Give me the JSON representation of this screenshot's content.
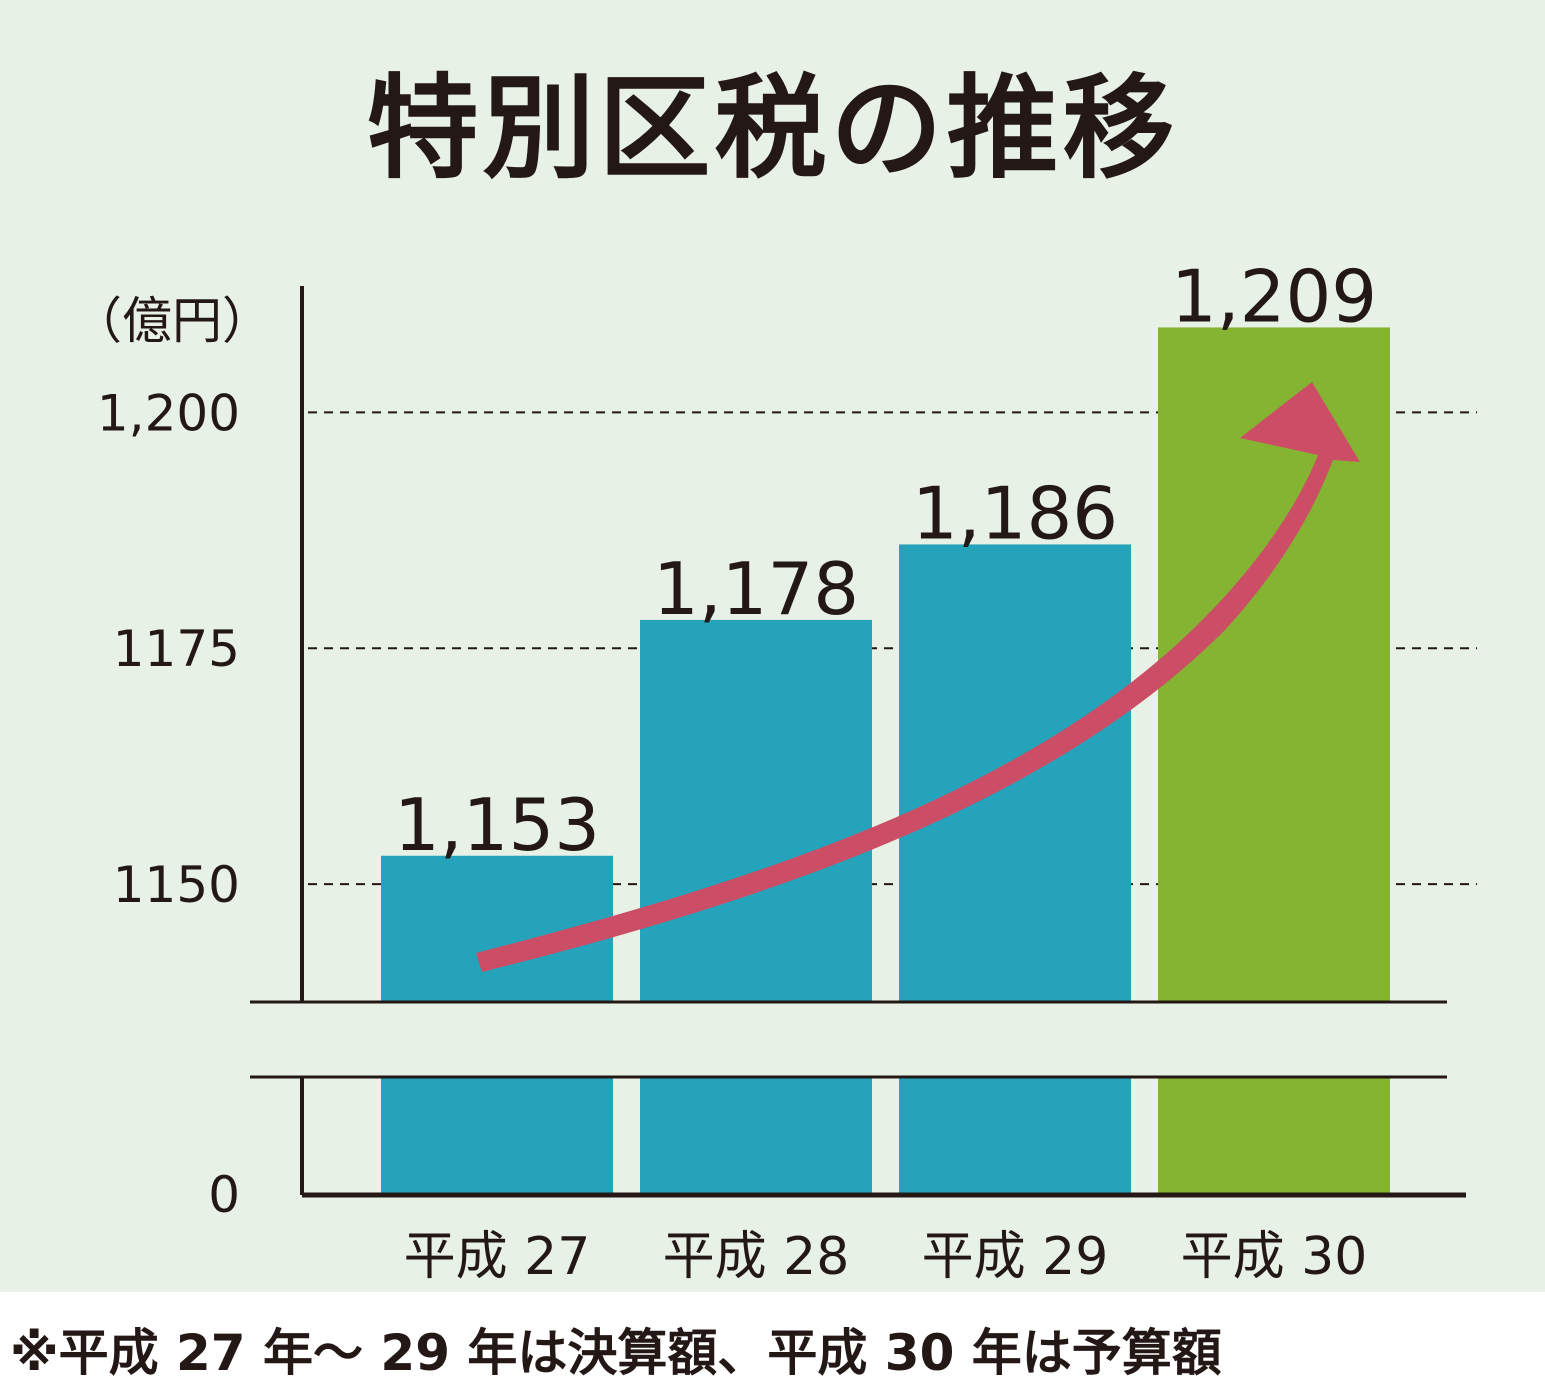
{
  "chart_data": {
    "type": "bar",
    "title": "特別区税の推移",
    "unit_label": "（億円）",
    "categories": [
      "平成 27",
      "平成 28",
      "平成 29",
      "平成 30"
    ],
    "values": [
      1153,
      1178,
      1186,
      1209
    ],
    "data_labels": [
      "1,153",
      "1,178",
      "1,186",
      "1,209"
    ],
    "bar_colors": [
      "#24a3bb",
      "#24a3bb",
      "#24a3bb",
      "#85b332"
    ],
    "y_ticks": [
      {
        "value": 1150,
        "label": "1150"
      },
      {
        "value": 1175,
        "label": "1175"
      },
      {
        "value": 1200,
        "label": "1,200"
      },
      {
        "value": 0,
        "label": "0"
      }
    ],
    "ylim_upper": [
      1137.5,
      1210
    ],
    "axis_break": true,
    "grid": "dashed",
    "trend_arrow_color": "#cc4e66",
    "footnote": "※平成 27 年〜 29 年は決算額、平成 30 年は予算額"
  }
}
